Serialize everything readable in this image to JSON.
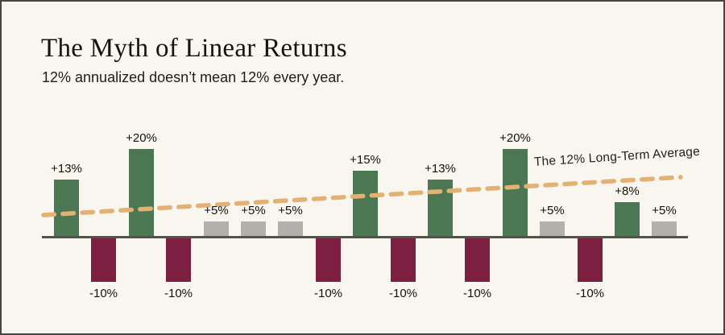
{
  "header": {
    "title": "The Myth of Linear Returns",
    "subtitle": "12% annualized doesn’t mean 12% every year."
  },
  "chart_data": {
    "type": "bar",
    "title": "The Myth of Linear Returns",
    "subtitle": "12% annualized doesn’t mean 12% every year.",
    "values": [
      13,
      -10,
      20,
      -10,
      5,
      5,
      5,
      -10,
      15,
      -10,
      13,
      -10,
      20,
      5,
      -10,
      8,
      5
    ],
    "bar_labels": [
      "+13%",
      "-10%",
      "+20%",
      "-10%",
      "+5%",
      "+5%",
      "+5%",
      "-10%",
      "+15%",
      "-10%",
      "+13%",
      "-10%",
      "+20%",
      "+5%",
      "-10%",
      "+8%",
      "+5%"
    ],
    "bar_kinds": [
      "strong-gain",
      "loss",
      "strong-gain",
      "loss",
      "mild-gain",
      "mild-gain",
      "mild-gain",
      "loss",
      "strong-gain",
      "loss",
      "strong-gain",
      "loss",
      "strong-gain",
      "mild-gain",
      "loss",
      "strong-gain",
      "mild-gain"
    ],
    "trendline": {
      "label": "The 12% Long-Term Average",
      "style": "dashed",
      "direction": "rising-left-to-right"
    },
    "xlabel": "",
    "ylabel": "",
    "ylim": [
      -12,
      22
    ],
    "grid": false,
    "legend": null,
    "colors": {
      "strong_gain": "#4b7752",
      "loss": "#7d1f41",
      "mild_gain": "#b1b0ac",
      "trend": "#e2b173",
      "axis": "#53524c",
      "background": "#f8f6ee",
      "border": "#46453f",
      "text": "#14130f"
    }
  }
}
